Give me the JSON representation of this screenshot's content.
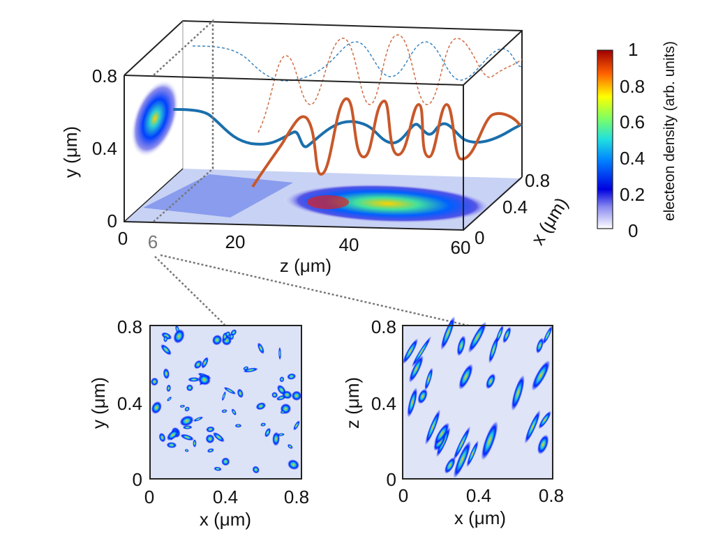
{
  "chart_data": [
    {
      "type": "3d-line-with-density-projections",
      "panel": "main-3d",
      "axes": {
        "z": {
          "label": "z (μm)",
          "range": [
            0,
            60
          ],
          "ticks": [
            "0",
            "20",
            "40",
            "60"
          ],
          "highlight_tick": "6"
        },
        "y": {
          "label": "y (μm)",
          "range": [
            0,
            0.8
          ],
          "ticks": [
            "0",
            "0.4",
            "0.8"
          ]
        },
        "x": {
          "label": "x (μm)",
          "range": [
            0,
            0.8
          ],
          "ticks": [
            "0",
            "0.4",
            "0.8"
          ]
        }
      },
      "series": [
        {
          "name": "trajectory-blue",
          "color": "#1a6fad",
          "z": [
            8,
            12,
            18,
            24,
            30,
            34,
            38,
            42,
            46,
            50,
            54,
            58,
            60
          ],
          "y": [
            0.58,
            0.58,
            0.5,
            0.45,
            0.48,
            0.5,
            0.47,
            0.52,
            0.5,
            0.5,
            0.52,
            0.5,
            0.52
          ]
        },
        {
          "name": "trajectory-orange",
          "color": "#c8582a",
          "z": [
            24,
            28,
            32,
            36,
            40,
            44,
            48,
            52,
            56,
            60
          ],
          "y": [
            0.2,
            0.35,
            0.55,
            0.3,
            0.6,
            0.4,
            0.6,
            0.45,
            0.58,
            0.5
          ]
        }
      ],
      "projection_label": "6"
    },
    {
      "type": "heatmap",
      "panel": "slice-xy",
      "xlabel": "x (μm)",
      "ylabel": "y (μm)",
      "xlim": [
        0,
        0.8
      ],
      "ylim": [
        0,
        0.8
      ],
      "xticks": [
        "0",
        "0.4",
        "0.8"
      ],
      "yticks": [
        "0",
        "0.4",
        "0.8"
      ]
    },
    {
      "type": "heatmap",
      "panel": "slice-xz",
      "xlabel": "x (μm)",
      "ylabel": "z (μm)",
      "xlim": [
        0,
        0.8
      ],
      "ylim": [
        0,
        0.8
      ],
      "xticks": [
        "0",
        "0.4",
        "0.8"
      ],
      "yticks": [
        "0",
        "0.4",
        "0.8"
      ]
    }
  ],
  "colorbar": {
    "label": "electeon density (arb. units)",
    "ticks": [
      "0",
      "0.2",
      "0.4",
      "0.6",
      "0.8",
      "1"
    ],
    "range": [
      0,
      1
    ]
  },
  "colors": {
    "blue_line": "#1a6fad",
    "orange_line": "#c8582a",
    "dash_grey": "#777777"
  }
}
